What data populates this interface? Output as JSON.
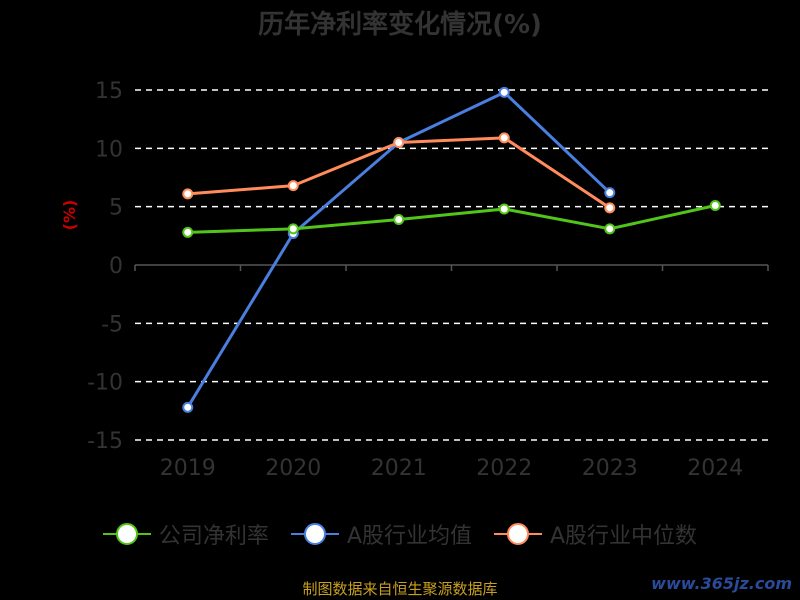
{
  "chart_data": {
    "type": "line",
    "title": "历年净利率变化情况(%)",
    "ylabel": "(%)",
    "categories": [
      "2019",
      "2020",
      "2021",
      "2022",
      "2023",
      "2024"
    ],
    "yticks": [
      "15",
      "10",
      "5",
      "0",
      "-5",
      "-10",
      "-15"
    ],
    "ylim": [
      -15,
      15
    ],
    "grid": "dashed horizontal",
    "legend_position": "bottom",
    "series": [
      {
        "name": "公司净利率",
        "color": "#52c41a",
        "values": [
          2.8,
          3.1,
          3.9,
          4.8,
          3.1,
          5.1
        ]
      },
      {
        "name": "A股行业均值",
        "color": "#4a7fe0",
        "values": [
          -12.2,
          2.7,
          10.5,
          14.8,
          6.2,
          null
        ]
      },
      {
        "name": "A股行业中位数",
        "color": "#ff8c5a",
        "values": [
          6.1,
          6.8,
          10.5,
          10.9,
          4.9,
          null
        ]
      }
    ]
  },
  "footer": {
    "source": "制图数据来自恒生聚源数据库",
    "watermark": "www.365jz.com"
  }
}
